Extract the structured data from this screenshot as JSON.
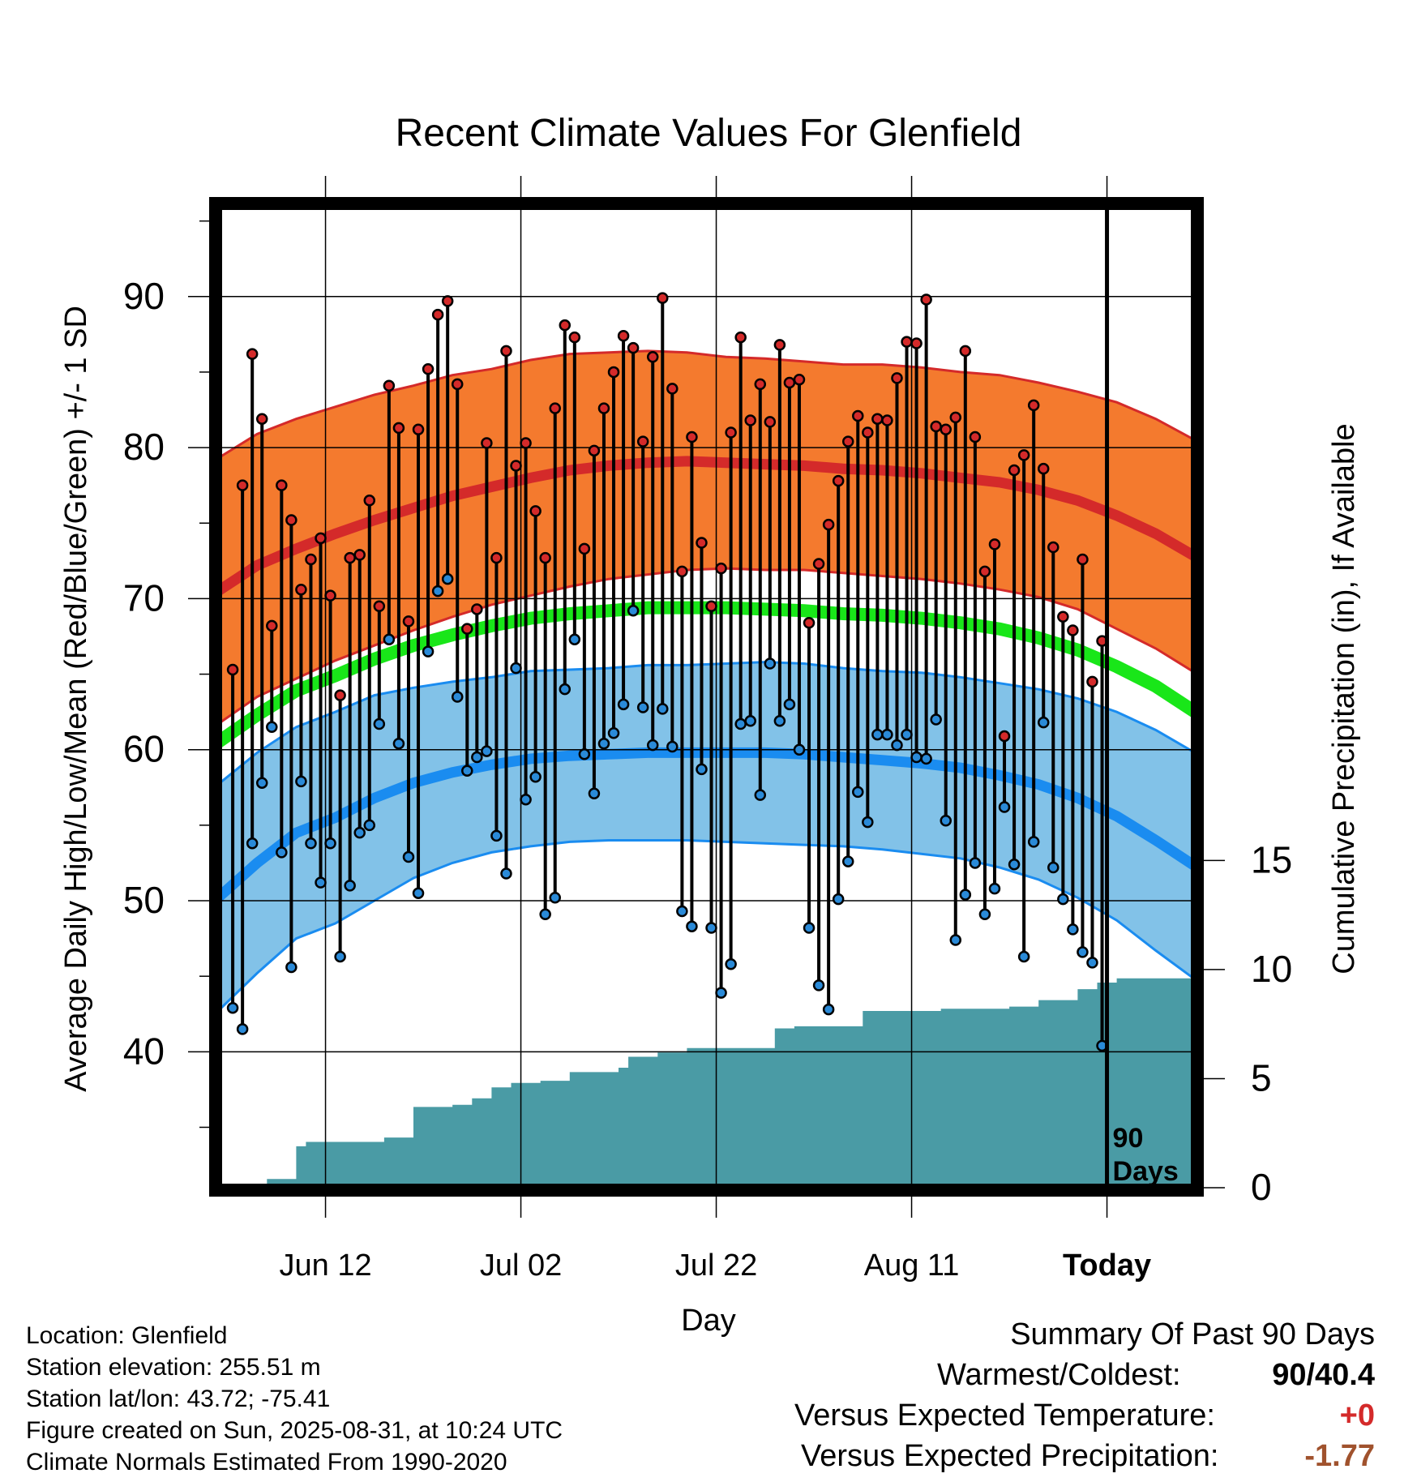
{
  "chart_data": {
    "type": "line",
    "title": "Recent Climate Values For Glenfield",
    "xlabel": "Day",
    "ylabel": "Average Daily High/Low/Mean (Red/Blue/Green) +/- 1 SD",
    "y2label": "Cumulative Precipitation (in), If Available",
    "x_tick_labels": [
      "Jun 12",
      "Jul 02",
      "Jul 22",
      "Aug 11",
      "Today"
    ],
    "y_ticks": [
      40,
      50,
      60,
      70,
      80,
      90
    ],
    "y2_ticks": [
      0,
      5,
      10,
      15
    ],
    "ylim": [
      31,
      96
    ],
    "y2lim": [
      0,
      45
    ],
    "today_label": [
      "90",
      "Days"
    ],
    "colors": {
      "high_band": "#f47a2e",
      "high_line": "#d42a2a",
      "low_band": "#82c2e8",
      "low_line": "#1a8cf0",
      "mean_line": "#19e619",
      "precip": "#4a9ba5",
      "high_dot": "#d42a2a",
      "low_dot": "#2a8ad8"
    },
    "x_range_days": [
      -91,
      9
    ],
    "x_tick_days": [
      -80,
      -60,
      -40,
      -20,
      0
    ],
    "normal_high": [
      70.5,
      72.2,
      73.3,
      74.3,
      75.2,
      76.0,
      76.8,
      77.4,
      78.0,
      78.5,
      78.8,
      79.0,
      79.1,
      79.0,
      78.9,
      78.8,
      78.6,
      78.5,
      78.3,
      78.0,
      77.7,
      77.2,
      76.5,
      75.5,
      74.3,
      72.8
    ],
    "normal_high_sd": [
      8.8,
      8.7,
      8.6,
      8.4,
      8.3,
      8.1,
      8.0,
      7.8,
      7.8,
      7.7,
      7.5,
      7.4,
      7.2,
      7.0,
      7.0,
      6.9,
      6.9,
      7.0,
      7.0,
      7.0,
      7.1,
      7.1,
      7.2,
      7.5,
      7.6,
      7.7
    ],
    "normal_low": [
      50.2,
      52.5,
      54.5,
      55.5,
      56.8,
      57.8,
      58.5,
      59.0,
      59.4,
      59.6,
      59.7,
      59.8,
      59.8,
      59.8,
      59.8,
      59.7,
      59.5,
      59.3,
      59.1,
      58.8,
      58.3,
      57.7,
      56.8,
      55.6,
      54.0,
      52.3
    ],
    "normal_low_sd": [
      7.5,
      7.3,
      7.0,
      7.0,
      6.8,
      6.3,
      6.0,
      5.8,
      5.8,
      5.7,
      5.7,
      5.8,
      5.8,
      5.9,
      6.0,
      6.0,
      5.9,
      5.9,
      6.0,
      6.0,
      6.1,
      6.3,
      6.6,
      6.9,
      7.3,
      7.5
    ],
    "normal_mean": [
      60.5,
      62.3,
      63.9,
      64.9,
      66.0,
      66.9,
      67.6,
      68.2,
      68.7,
      69.0,
      69.2,
      69.4,
      69.4,
      69.4,
      69.3,
      69.2,
      69.0,
      68.9,
      68.7,
      68.4,
      68.0,
      67.4,
      66.6,
      65.5,
      64.2,
      62.5
    ],
    "series": [
      {
        "name": "High",
        "values": [
          65.3,
          77.5,
          86.2,
          81.9,
          68.2,
          77.5,
          75.2,
          70.6,
          72.6,
          74.0,
          70.2,
          63.6,
          72.7,
          72.9,
          76.5,
          69.5,
          84.1,
          81.3,
          68.5,
          81.2,
          85.2,
          88.8,
          89.7,
          84.2,
          68.0,
          69.3,
          80.3,
          72.7,
          86.4,
          78.8,
          80.3,
          75.8,
          72.7,
          82.6,
          88.1,
          87.3,
          73.3,
          79.8,
          82.6,
          85.0,
          87.4,
          86.6,
          80.4,
          86.0,
          89.9,
          83.9,
          71.8,
          80.7,
          73.7,
          69.5,
          72.0,
          81.0,
          87.3,
          81.8,
          84.2,
          81.7,
          86.8,
          84.3,
          84.5,
          68.4,
          72.3,
          74.9,
          77.8,
          80.4,
          82.1,
          81.0,
          81.9,
          81.8,
          84.6,
          87.0,
          86.9,
          89.8,
          81.4,
          81.2,
          82.0,
          86.4,
          80.7,
          71.8,
          73.6,
          60.9,
          78.5,
          79.5,
          82.8,
          78.6,
          73.4,
          68.8,
          67.9,
          72.6,
          64.5,
          67.2
        ]
      },
      {
        "name": "Low",
        "values": [
          42.9,
          41.5,
          53.8,
          57.8,
          61.5,
          53.2,
          45.6,
          57.9,
          53.8,
          51.2,
          53.8,
          46.3,
          51.0,
          54.5,
          55.0,
          61.7,
          67.3,
          60.4,
          52.9,
          50.5,
          66.5,
          70.5,
          71.3,
          63.5,
          58.6,
          59.5,
          59.9,
          54.3,
          51.8,
          65.4,
          56.7,
          58.2,
          49.1,
          50.2,
          64.0,
          67.3,
          59.7,
          57.1,
          60.4,
          61.1,
          63.0,
          69.2,
          62.8,
          60.3,
          62.7,
          60.2,
          49.3,
          48.3,
          58.7,
          48.2,
          43.9,
          45.8,
          61.7,
          61.9,
          57.0,
          65.7,
          61.9,
          63.0,
          60.0,
          48.2,
          44.4,
          42.8,
          50.1,
          52.6,
          57.2,
          55.2,
          61.0,
          61.0,
          60.3,
          61.0,
          59.5,
          59.4,
          62.0,
          55.3,
          47.4,
          50.4,
          52.5,
          49.1,
          50.8,
          56.2,
          52.4,
          46.3,
          53.9,
          61.8,
          52.2,
          50.1,
          48.1,
          46.6,
          45.9,
          40.4
        ]
      },
      {
        "name": "Precipitation",
        "values": [
          0,
          0,
          0,
          0,
          0.1,
          0.4,
          0.4,
          0.4,
          1.9,
          2.1,
          2.1,
          2.1,
          2.1,
          2.1,
          2.1,
          2.1,
          2.1,
          2.3,
          2.3,
          2.3,
          3.7,
          3.7,
          3.7,
          3.7,
          3.8,
          3.8,
          4.1,
          4.1,
          4.6,
          4.6,
          4.8,
          4.8,
          4.8,
          4.9,
          4.9,
          4.9,
          5.3,
          5.3,
          5.3,
          5.3,
          5.3,
          5.5,
          6.0,
          6.0,
          6.0,
          6.2,
          6.2,
          6.2,
          6.4,
          6.4,
          6.4,
          6.4,
          6.4,
          6.4,
          6.4,
          6.4,
          6.4,
          7.3,
          7.3,
          7.4,
          7.4,
          7.4,
          7.4,
          7.4,
          7.4,
          7.4,
          8.1,
          8.1,
          8.1,
          8.1,
          8.1,
          8.1,
          8.1,
          8.1,
          8.2,
          8.2,
          8.2,
          8.2,
          8.2,
          8.2,
          8.2,
          8.3,
          8.3,
          8.3,
          8.6,
          8.6,
          8.6,
          8.6,
          9.1,
          9.1,
          9.4,
          9.4,
          9.6,
          9.6,
          9.6,
          9.6,
          9.6,
          9.6,
          9.6,
          9.6,
          9.6
        ]
      }
    ]
  },
  "footer": {
    "location": "Location: Glenfield",
    "elevation": "Station elevation: 255.51 m",
    "latlon": "Station lat/lon: 43.72; -75.41",
    "created": "Figure created on Sun, 2025-08-31, at 10:24 UTC",
    "normals": "Climate Normals Estimated From 1990-2020"
  },
  "summary": {
    "title": "Summary Of Past 90 Days",
    "warmest_label": "Warmest/Coldest:",
    "warmest_value": "90/40.4",
    "temp_label": "Versus Expected Temperature:",
    "temp_value": "+0",
    "temp_color": "#d42a2a",
    "precip_label": "Versus Expected Precipitation:",
    "precip_value": "-1.77",
    "precip_color": "#a0522d"
  }
}
